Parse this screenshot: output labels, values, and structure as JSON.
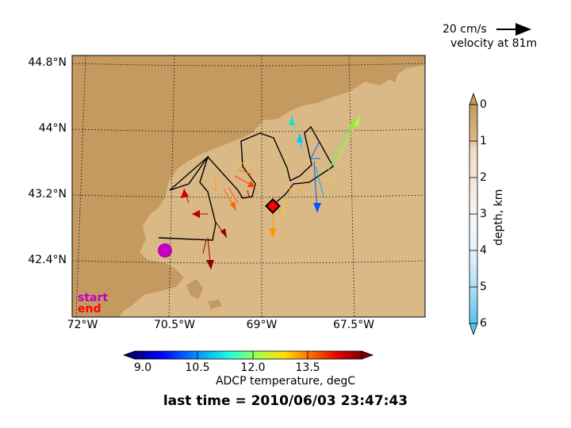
{
  "map": {
    "x_ticks": [
      "72°W",
      "70.5°W",
      "69°W",
      "67.5°W"
    ],
    "y_ticks": [
      "44.8°N",
      "44°N",
      "43.2°N",
      "42.4°N"
    ],
    "legend": {
      "start": "start",
      "end": "end"
    },
    "colors": {
      "land": "#c49a60",
      "sea": "#dbb986",
      "start": "#c000c0",
      "end": "#ff0000"
    }
  },
  "velocity_key": {
    "speed": "20 cm/s",
    "depth_label": "velocity at 81m"
  },
  "depth_colorbar": {
    "label": "depth, km",
    "ticks": [
      "0",
      "1",
      "2",
      "3",
      "4",
      "5",
      "6"
    ]
  },
  "temp_colorbar": {
    "label": "ADCP temperature, degC",
    "ticks": [
      "9.0",
      "10.5",
      "12.0",
      "13.5"
    ]
  },
  "last_time": "last time = 2010/06/03 23:47:43"
}
